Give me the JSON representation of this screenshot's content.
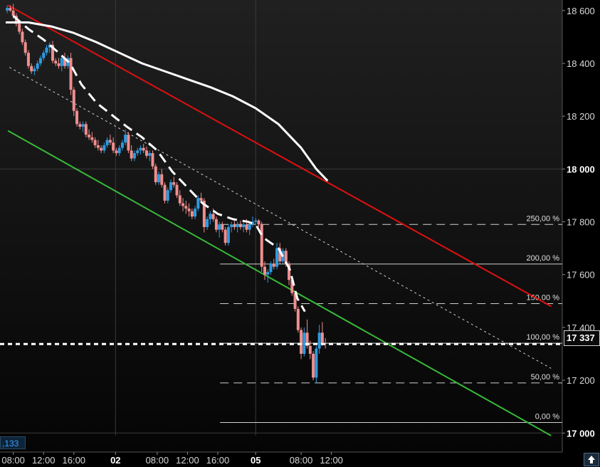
{
  "chart_data": {
    "type": "candlestick",
    "y_axis": {
      "ticks": [
        17000,
        17200,
        17400,
        17600,
        17800,
        18000,
        18200,
        18400,
        18600
      ],
      "tick_labels": [
        "17 000",
        "17 200",
        "17 400",
        "17 600",
        "17 800",
        "18 000",
        "18 200",
        "18 400",
        "18 600"
      ],
      "bold_ticks": [
        "17 000",
        "18 000"
      ],
      "range": [
        16990,
        18640
      ],
      "position": "right"
    },
    "x_axis": {
      "range": [
        0,
        72
      ],
      "ticks": [
        {
          "t": 1,
          "label": "08:00",
          "bold": false
        },
        {
          "t": 5,
          "label": "12:00",
          "bold": false
        },
        {
          "t": 9,
          "label": "16:00",
          "bold": false
        },
        {
          "t": 14.5,
          "label": "02",
          "bold": true
        },
        {
          "t": 20,
          "label": "08:00",
          "bold": false
        },
        {
          "t": 24,
          "label": "12:00",
          "bold": false
        },
        {
          "t": 28,
          "label": "16:00",
          "bold": false
        },
        {
          "t": 33,
          "label": "05",
          "bold": true
        },
        {
          "t": 39,
          "label": "08:00",
          "bold": false
        },
        {
          "t": 43,
          "label": "12:00",
          "bold": false
        }
      ],
      "day_separators": [
        14.5,
        33
      ]
    },
    "grid": true,
    "last_price": {
      "value": 17337,
      "label": "17 337"
    },
    "cursor_value": ",133",
    "candles": [
      [
        0.2,
        18600,
        18620,
        18590,
        18610
      ],
      [
        0.6,
        18610,
        18620,
        18595,
        18600
      ],
      [
        1.0,
        18600,
        18625,
        18570,
        18580
      ],
      [
        1.4,
        18580,
        18590,
        18540,
        18550
      ],
      [
        1.8,
        18550,
        18560,
        18510,
        18520
      ],
      [
        2.2,
        18520,
        18530,
        18470,
        18480
      ],
      [
        2.6,
        18480,
        18490,
        18430,
        18440
      ],
      [
        3.0,
        18440,
        18450,
        18380,
        18390
      ],
      [
        3.4,
        18390,
        18400,
        18360,
        18370
      ],
      [
        3.8,
        18370,
        18390,
        18355,
        18380
      ],
      [
        4.2,
        18380,
        18410,
        18370,
        18400
      ],
      [
        4.6,
        18400,
        18430,
        18390,
        18420
      ],
      [
        5.0,
        18420,
        18450,
        18410,
        18440
      ],
      [
        5.4,
        18440,
        18470,
        18430,
        18460
      ],
      [
        5.8,
        18460,
        18480,
        18440,
        18470
      ],
      [
        6.2,
        18470,
        18485,
        18400,
        18410
      ],
      [
        6.6,
        18410,
        18420,
        18390,
        18400
      ],
      [
        7.0,
        18400,
        18420,
        18380,
        18390
      ],
      [
        7.4,
        18390,
        18430,
        18370,
        18420
      ],
      [
        7.8,
        18420,
        18440,
        18380,
        18390
      ],
      [
        8.2,
        18390,
        18430,
        18380,
        18420
      ],
      [
        8.6,
        18420,
        18440,
        18280,
        18300
      ],
      [
        9.0,
        18300,
        18310,
        18200,
        18220
      ],
      [
        9.4,
        18220,
        18230,
        18160,
        18170
      ],
      [
        9.8,
        18170,
        18180,
        18150,
        18160
      ],
      [
        10.2,
        18160,
        18180,
        18140,
        18170
      ],
      [
        10.6,
        18170,
        18180,
        18120,
        18130
      ],
      [
        11.0,
        18130,
        18150,
        18110,
        18120
      ],
      [
        11.4,
        18120,
        18140,
        18100,
        18110
      ],
      [
        11.8,
        18110,
        18120,
        18080,
        18090
      ],
      [
        12.2,
        18090,
        18110,
        18070,
        18080
      ],
      [
        12.6,
        18080,
        18090,
        18060,
        18070
      ],
      [
        13.0,
        18070,
        18100,
        18060,
        18090
      ],
      [
        13.4,
        18090,
        18120,
        18080,
        18110
      ],
      [
        13.8,
        18110,
        18130,
        18090,
        18100
      ],
      [
        14.2,
        18100,
        18120,
        18060,
        18070
      ],
      [
        14.6,
        18070,
        18080,
        18050,
        18060
      ],
      [
        15.0,
        18060,
        18090,
        18050,
        18080
      ],
      [
        15.4,
        18080,
        18110,
        18070,
        18100
      ],
      [
        15.8,
        18100,
        18150,
        18090,
        18130
      ],
      [
        16.2,
        18130,
        18140,
        18060,
        18070
      ],
      [
        16.6,
        18070,
        18090,
        18030,
        18040
      ],
      [
        17.0,
        18040,
        18070,
        18030,
        18060
      ],
      [
        17.4,
        18060,
        18080,
        18050,
        18070
      ],
      [
        17.8,
        18070,
        18090,
        18055,
        18080
      ],
      [
        18.2,
        18080,
        18095,
        18060,
        18070
      ],
      [
        18.6,
        18070,
        18085,
        18040,
        18050
      ],
      [
        19.0,
        18050,
        18070,
        18030,
        18060
      ],
      [
        19.4,
        18060,
        18070,
        18000,
        18010
      ],
      [
        19.8,
        18010,
        18020,
        17940,
        17950
      ],
      [
        20.2,
        17950,
        17990,
        17940,
        17980
      ],
      [
        20.6,
        17980,
        18000,
        17930,
        17940
      ],
      [
        21.0,
        17940,
        17950,
        17870,
        17880
      ],
      [
        21.4,
        17880,
        17930,
        17870,
        17920
      ],
      [
        21.8,
        17920,
        17960,
        17910,
        17950
      ],
      [
        22.2,
        17950,
        17970,
        17930,
        17940
      ],
      [
        22.6,
        17940,
        17950,
        17890,
        17900
      ],
      [
        23.0,
        17900,
        17920,
        17860,
        17870
      ],
      [
        23.4,
        17870,
        17890,
        17840,
        17860
      ],
      [
        23.8,
        17860,
        17880,
        17830,
        17850
      ],
      [
        24.2,
        17850,
        17870,
        17820,
        17840
      ],
      [
        24.6,
        17840,
        17850,
        17810,
        17820
      ],
      [
        25.0,
        17820,
        17860,
        17810,
        17850
      ],
      [
        25.4,
        17850,
        17900,
        17840,
        17890
      ],
      [
        25.8,
        17890,
        17910,
        17870,
        17880
      ],
      [
        26.2,
        17880,
        17890,
        17760,
        17780
      ],
      [
        26.6,
        17780,
        17820,
        17770,
        17810
      ],
      [
        27.0,
        17810,
        17840,
        17790,
        17830
      ],
      [
        27.4,
        17830,
        17850,
        17800,
        17810
      ],
      [
        27.8,
        17810,
        17820,
        17760,
        17770
      ],
      [
        28.2,
        17770,
        17800,
        17740,
        17790
      ],
      [
        28.6,
        17790,
        17800,
        17760,
        17770
      ],
      [
        29.0,
        17770,
        17780,
        17710,
        17720
      ],
      [
        29.4,
        17720,
        17790,
        17710,
        17780
      ],
      [
        29.8,
        17780,
        17800,
        17760,
        17790
      ],
      [
        30.2,
        17790,
        17810,
        17770,
        17780
      ],
      [
        30.6,
        17780,
        17800,
        17760,
        17790
      ],
      [
        31.0,
        17790,
        17805,
        17770,
        17780
      ],
      [
        31.4,
        17780,
        17800,
        17760,
        17790
      ],
      [
        31.8,
        17790,
        17810,
        17760,
        17770
      ],
      [
        32.2,
        17770,
        17800,
        17750,
        17790
      ],
      [
        32.6,
        17790,
        17820,
        17780,
        17800
      ],
      [
        33.0,
        17800,
        17815,
        17790,
        17805
      ],
      [
        33.4,
        17805,
        17810,
        17780,
        17790
      ],
      [
        33.8,
        17790,
        17800,
        17610,
        17630
      ],
      [
        34.2,
        17630,
        17650,
        17580,
        17600
      ],
      [
        34.6,
        17600,
        17620,
        17570,
        17610
      ],
      [
        35.0,
        17610,
        17650,
        17600,
        17640
      ],
      [
        35.4,
        17640,
        17660,
        17620,
        17630
      ],
      [
        35.8,
        17630,
        17720,
        17620,
        17700
      ],
      [
        36.2,
        17700,
        17720,
        17640,
        17650
      ],
      [
        36.6,
        17650,
        17700,
        17640,
        17690
      ],
      [
        37.0,
        17690,
        17700,
        17630,
        17640
      ],
      [
        37.4,
        17640,
        17650,
        17560,
        17580
      ],
      [
        37.8,
        17580,
        17590,
        17520,
        17530
      ],
      [
        38.2,
        17530,
        17540,
        17460,
        17470
      ],
      [
        38.6,
        17470,
        17480,
        17380,
        17390
      ],
      [
        39.0,
        17390,
        17400,
        17280,
        17300
      ],
      [
        39.4,
        17300,
        17400,
        17290,
        17380
      ],
      [
        39.8,
        17380,
        17430,
        17320,
        17330
      ],
      [
        40.2,
        17330,
        17350,
        17280,
        17300
      ],
      [
        40.6,
        17300,
        17310,
        17200,
        17210
      ],
      [
        41.0,
        17210,
        17330,
        17190,
        17320
      ],
      [
        41.4,
        17320,
        17410,
        17300,
        17380
      ],
      [
        41.8,
        17380,
        17420,
        17330,
        17340
      ],
      [
        42.2,
        17340,
        17360,
        17320,
        17337
      ]
    ],
    "lines": [
      {
        "name": "ma-white-solid",
        "color": "#ffffff",
        "style": "solid",
        "points": [
          [
            0,
            18555
          ],
          [
            3,
            18555
          ],
          [
            6,
            18540
          ],
          [
            9,
            18515
          ],
          [
            12,
            18480
          ],
          [
            15,
            18440
          ],
          [
            18,
            18400
          ],
          [
            21,
            18370
          ],
          [
            24,
            18340
          ],
          [
            27,
            18310
          ],
          [
            30,
            18275
          ],
          [
            33,
            18230
          ],
          [
            36,
            18170
          ],
          [
            39,
            18080
          ],
          [
            41,
            18000
          ],
          [
            42.5,
            17955
          ]
        ]
      },
      {
        "name": "ma-white-dashed",
        "color": "#ffffff",
        "style": "dashed",
        "points": [
          [
            1,
            18580
          ],
          [
            3,
            18530
          ],
          [
            5,
            18490
          ],
          [
            7,
            18440
          ],
          [
            8.5,
            18400
          ],
          [
            10,
            18320
          ],
          [
            12,
            18250
          ],
          [
            14,
            18205
          ],
          [
            16,
            18160
          ],
          [
            18,
            18120
          ],
          [
            20,
            18070
          ],
          [
            22,
            17990
          ],
          [
            24,
            17930
          ],
          [
            26,
            17870
          ],
          [
            28,
            17830
          ],
          [
            30,
            17810
          ],
          [
            32,
            17800
          ],
          [
            33,
            17790
          ],
          [
            34,
            17740
          ],
          [
            36,
            17700
          ],
          [
            37.5,
            17620
          ],
          [
            38.5,
            17510
          ],
          [
            39.5,
            17460
          ]
        ]
      },
      {
        "name": "trend-red",
        "color": "#e01010",
        "style": "solid",
        "points": [
          [
            0.3,
            18620
          ],
          [
            72,
            17480
          ]
        ]
      },
      {
        "name": "trend-green",
        "color": "#38b838",
        "style": "solid",
        "points": [
          [
            0.3,
            18145
          ],
          [
            72,
            16990
          ]
        ]
      },
      {
        "name": "trend-dotted",
        "color": "#cfcfcf",
        "style": "dotted",
        "points": [
          [
            0.5,
            18385
          ],
          [
            72,
            17245
          ]
        ]
      }
    ],
    "fib_levels": [
      {
        "value": 17790,
        "label": "250,00 %",
        "style": "dashed"
      },
      {
        "value": 17640,
        "label": "200,00 %",
        "style": "solid"
      },
      {
        "value": 17490,
        "label": "150,00 %",
        "style": "dashed"
      },
      {
        "value": 17340,
        "label": "100,00 %",
        "style": "solid"
      },
      {
        "value": 17190,
        "label": "50,00 %",
        "style": "dashed"
      },
      {
        "value": 17040,
        "label": "0,00 %",
        "style": "solid"
      }
    ],
    "fib_start_t": 28.3,
    "colors": {
      "up": "#2e9be0",
      "down": "#f08e8e",
      "grid": "#3a3a3a",
      "background": "#000000"
    }
  }
}
